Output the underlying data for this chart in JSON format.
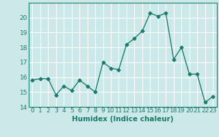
{
  "x": [
    0,
    1,
    2,
    3,
    4,
    5,
    6,
    7,
    8,
    9,
    10,
    11,
    12,
    13,
    14,
    15,
    16,
    17,
    18,
    19,
    20,
    21,
    22,
    23
  ],
  "y": [
    15.8,
    15.9,
    15.9,
    14.8,
    15.4,
    15.1,
    15.8,
    15.4,
    15.0,
    17.0,
    16.6,
    16.5,
    18.2,
    18.6,
    19.1,
    20.3,
    20.1,
    20.3,
    17.2,
    18.0,
    16.2,
    16.2,
    14.3,
    14.7
  ],
  "line_color": "#1a7a6e",
  "marker": "D",
  "marker_size": 2.5,
  "xlabel": "Humidex (Indice chaleur)",
  "xlim": [
    -0.5,
    23.5
  ],
  "ylim": [
    14,
    21
  ],
  "yticks": [
    14,
    15,
    16,
    17,
    18,
    19,
    20
  ],
  "xticks": [
    0,
    1,
    2,
    3,
    4,
    5,
    6,
    7,
    8,
    9,
    10,
    11,
    12,
    13,
    14,
    15,
    16,
    17,
    18,
    19,
    20,
    21,
    22,
    23
  ],
  "bg_color": "#cce8e8",
  "grid_color": "#ffffff",
  "tick_label_fontsize": 6.5,
  "xlabel_fontsize": 7.5,
  "linewidth": 1.0
}
